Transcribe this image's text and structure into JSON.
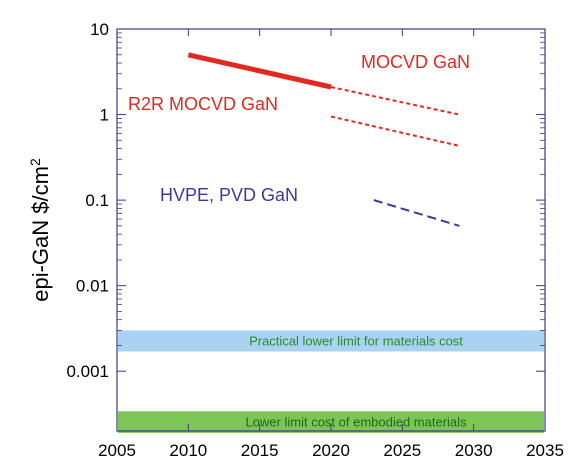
{
  "chart_data": {
    "type": "line",
    "xlabel": "",
    "ylabel": "epi-GaN $/cm",
    "ylabel_superscript": "2",
    "y_scale": "log",
    "xlim": [
      2005,
      2035
    ],
    "ylim": [
      0.0002,
      10
    ],
    "x_ticks": [
      2005,
      2010,
      2015,
      2020,
      2025,
      2030,
      2035
    ],
    "x_tick_labels": [
      "2005",
      "2010",
      "2015",
      "2020",
      "2025",
      "2030",
      "2035"
    ],
    "y_ticks": [
      0.001,
      0.01,
      0.1,
      1,
      10
    ],
    "y_tick_labels": [
      "0.001",
      "0.01",
      "0.1",
      "1",
      "10"
    ],
    "grid": false,
    "series": [
      {
        "name": "MOCVD GaN",
        "color": "#e02a1f",
        "segments": [
          {
            "style": "solid",
            "x": [
              2010,
              2020
            ],
            "y": [
              5.0,
              2.1
            ]
          },
          {
            "style": "dotted",
            "x": [
              2020,
              2029
            ],
            "y": [
              2.1,
              1.0
            ]
          }
        ]
      },
      {
        "name": "R2R MOCVD GaN",
        "color": "#e02a1f",
        "segments": [
          {
            "style": "dotted",
            "x": [
              2020,
              2029
            ],
            "y": [
              0.95,
              0.43
            ]
          }
        ]
      },
      {
        "name": "HVPE, PVD GaN",
        "color": "#3a3a9a",
        "segments": [
          {
            "style": "dashed",
            "x": [
              2023,
              2029
            ],
            "y": [
              0.1,
              0.05
            ]
          }
        ]
      }
    ],
    "bands": [
      {
        "label": "Practical lower limit for materials cost",
        "y_range": [
          0.0017,
          0.003
        ],
        "fill": "#a9d3f0",
        "text_color": "#2f8a2f"
      },
      {
        "label": "Lower limit cost of embodied materials",
        "y_range": [
          0.00019,
          0.00034
        ],
        "fill": "#7dc557",
        "text_color": "#1e6b1e"
      }
    ]
  }
}
